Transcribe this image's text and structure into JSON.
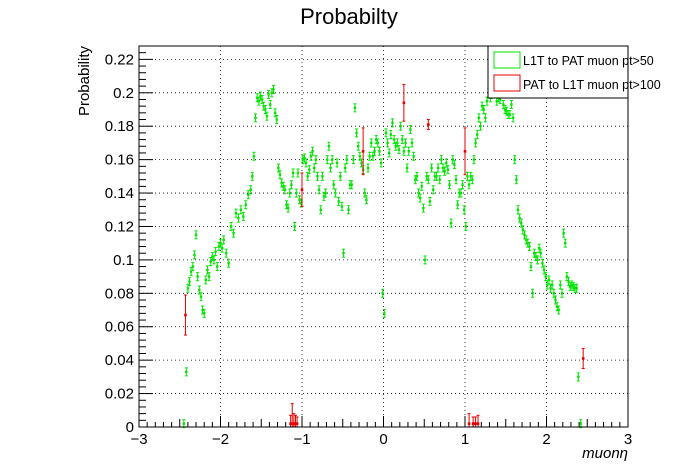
{
  "chart_data": {
    "type": "scatter",
    "title": "Probabilty",
    "xlabel": "muonη",
    "ylabel": "Probability",
    "xlim": [
      -3,
      3
    ],
    "ylim": [
      0,
      0.228
    ],
    "grid": true,
    "legend_position": "top-right",
    "xticks": [
      {
        "value": -3,
        "label": "−3"
      },
      {
        "value": -2,
        "label": "−2"
      },
      {
        "value": -1,
        "label": "−1"
      },
      {
        "value": 0,
        "label": "0"
      },
      {
        "value": 1,
        "label": "1"
      },
      {
        "value": 2,
        "label": "2"
      },
      {
        "value": 3,
        "label": "3"
      }
    ],
    "yticks": [
      {
        "value": 0,
        "label": "0"
      },
      {
        "value": 0.02,
        "label": "0.02"
      },
      {
        "value": 0.04,
        "label": "0.04"
      },
      {
        "value": 0.06,
        "label": "0.06"
      },
      {
        "value": 0.08,
        "label": "0.08"
      },
      {
        "value": 0.1,
        "label": "0.1"
      },
      {
        "value": 0.12,
        "label": "0.12"
      },
      {
        "value": 0.14,
        "label": "0.14"
      },
      {
        "value": 0.16,
        "label": "0.16"
      },
      {
        "value": 0.18,
        "label": "0.18"
      },
      {
        "value": 0.2,
        "label": "0.2"
      },
      {
        "value": 0.22,
        "label": "0.22"
      }
    ],
    "series": [
      {
        "name": "L1T to PAT muon pt>50",
        "color": "#00e600",
        "points": [
          [
            -2.45,
            0.002
          ],
          [
            -2.42,
            0.033
          ],
          [
            -2.4,
            0.083
          ],
          [
            -2.38,
            0.087
          ],
          [
            -2.36,
            0.093
          ],
          [
            -2.34,
            0.096
          ],
          [
            -2.32,
            0.103
          ],
          [
            -2.3,
            0.115
          ],
          [
            -2.28,
            0.09
          ],
          [
            -2.26,
            0.082
          ],
          [
            -2.24,
            0.078
          ],
          [
            -2.22,
            0.07
          ],
          [
            -2.2,
            0.068
          ],
          [
            -2.18,
            0.088
          ],
          [
            -2.16,
            0.094
          ],
          [
            -2.14,
            0.09
          ],
          [
            -2.12,
            0.099
          ],
          [
            -2.1,
            0.102
          ],
          [
            -2.08,
            0.1
          ],
          [
            -2.06,
            0.105
          ],
          [
            -2.04,
            0.096
          ],
          [
            -2.02,
            0.108
          ],
          [
            -2.0,
            0.11
          ],
          [
            -1.98,
            0.107
          ],
          [
            -1.96,
            0.112
          ],
          [
            -1.93,
            0.104
          ],
          [
            -1.9,
            0.098
          ],
          [
            -1.87,
            0.12
          ],
          [
            -1.84,
            0.116
          ],
          [
            -1.81,
            0.128
          ],
          [
            -1.78,
            0.125
          ],
          [
            -1.75,
            0.13
          ],
          [
            -1.72,
            0.126
          ],
          [
            -1.69,
            0.133
          ],
          [
            -1.66,
            0.139
          ],
          [
            -1.63,
            0.142
          ],
          [
            -1.61,
            0.15
          ],
          [
            -1.59,
            0.162
          ],
          [
            -1.57,
            0.185
          ],
          [
            -1.55,
            0.197
          ],
          [
            -1.53,
            0.195
          ],
          [
            -1.51,
            0.198
          ],
          [
            -1.49,
            0.196
          ],
          [
            -1.47,
            0.192
          ],
          [
            -1.45,
            0.19
          ],
          [
            -1.43,
            0.186
          ],
          [
            -1.41,
            0.199
          ],
          [
            -1.39,
            0.193
          ],
          [
            -1.37,
            0.2
          ],
          [
            -1.35,
            0.202
          ],
          [
            -1.33,
            0.188
          ],
          [
            -1.31,
            0.184
          ],
          [
            -1.29,
            0.155
          ],
          [
            -1.27,
            0.151
          ],
          [
            -1.25,
            0.146
          ],
          [
            -1.23,
            0.144
          ],
          [
            -1.21,
            0.142
          ],
          [
            -1.19,
            0.133
          ],
          [
            -1.17,
            0.131
          ],
          [
            -1.15,
            0.14
          ],
          [
            -1.13,
            0.145
          ],
          [
            -1.11,
            0.152
          ],
          [
            -1.09,
            0.12
          ],
          [
            -1.07,
            0.14
          ],
          [
            -1.05,
            0.152
          ],
          [
            -1.03,
            0.136
          ],
          [
            -1.01,
            0.134
          ],
          [
            -0.99,
            0.16
          ],
          [
            -0.97,
            0.161
          ],
          [
            -0.95,
            0.158
          ],
          [
            -0.93,
            0.15
          ],
          [
            -0.91,
            0.154
          ],
          [
            -0.89,
            0.162
          ],
          [
            -0.87,
            0.165
          ],
          [
            -0.85,
            0.155
          ],
          [
            -0.83,
            0.16
          ],
          [
            -0.81,
            0.15
          ],
          [
            -0.79,
            0.142
          ],
          [
            -0.77,
            0.13
          ],
          [
            -0.75,
            0.15
          ],
          [
            -0.73,
            0.138
          ],
          [
            -0.71,
            0.14
          ],
          [
            -0.69,
            0.16
          ],
          [
            -0.67,
            0.168
          ],
          [
            -0.65,
            0.155
          ],
          [
            -0.63,
            0.16
          ],
          [
            -0.61,
            0.145
          ],
          [
            -0.59,
            0.14
          ],
          [
            -0.57,
            0.158
          ],
          [
            -0.55,
            0.135
          ],
          [
            -0.53,
            0.15
          ],
          [
            -0.51,
            0.132
          ],
          [
            -0.49,
            0.104
          ],
          [
            -0.47,
            0.155
          ],
          [
            -0.45,
            0.16
          ],
          [
            -0.43,
            0.13
          ],
          [
            -0.41,
            0.145
          ],
          [
            -0.39,
            0.145
          ],
          [
            -0.37,
            0.16
          ],
          [
            -0.35,
            0.191
          ],
          [
            -0.33,
            0.176
          ],
          [
            -0.31,
            0.168
          ],
          [
            -0.29,
            0.162
          ],
          [
            -0.27,
            0.158
          ],
          [
            -0.25,
            0.154
          ],
          [
            -0.23,
            0.14
          ],
          [
            -0.21,
            0.136
          ],
          [
            -0.19,
            0.155
          ],
          [
            -0.17,
            0.162
          ],
          [
            -0.15,
            0.17
          ],
          [
            -0.13,
            0.162
          ],
          [
            -0.11,
            0.165
          ],
          [
            -0.09,
            0.172
          ],
          [
            -0.07,
            0.17
          ],
          [
            -0.05,
            0.165
          ],
          [
            -0.03,
            0.158
          ],
          [
            -0.01,
            0.08
          ],
          [
            0.01,
            0.068
          ],
          [
            0.03,
            0.176
          ],
          [
            0.05,
            0.17
          ],
          [
            0.07,
            0.164
          ],
          [
            0.09,
            0.175
          ],
          [
            0.11,
            0.182
          ],
          [
            0.13,
            0.172
          ],
          [
            0.15,
            0.168
          ],
          [
            0.17,
            0.17
          ],
          [
            0.19,
            0.166
          ],
          [
            0.21,
            0.18
          ],
          [
            0.23,
            0.172
          ],
          [
            0.25,
            0.165
          ],
          [
            0.27,
            0.17
          ],
          [
            0.29,
            0.155
          ],
          [
            0.31,
            0.165
          ],
          [
            0.33,
            0.178
          ],
          [
            0.35,
            0.17
          ],
          [
            0.37,
            0.162
          ],
          [
            0.39,
            0.148
          ],
          [
            0.41,
            0.15
          ],
          [
            0.43,
            0.14
          ],
          [
            0.45,
            0.137
          ],
          [
            0.47,
            0.144
          ],
          [
            0.49,
            0.131
          ],
          [
            0.51,
            0.1
          ],
          [
            0.53,
            0.15
          ],
          [
            0.55,
            0.148
          ],
          [
            0.57,
            0.135
          ],
          [
            0.59,
            0.155
          ],
          [
            0.61,
            0.142
          ],
          [
            0.63,
            0.15
          ],
          [
            0.65,
            0.15
          ],
          [
            0.67,
            0.155
          ],
          [
            0.69,
            0.148
          ],
          [
            0.71,
            0.16
          ],
          [
            0.73,
            0.155
          ],
          [
            0.75,
            0.153
          ],
          [
            0.77,
            0.158
          ],
          [
            0.79,
            0.154
          ],
          [
            0.81,
            0.145
          ],
          [
            0.83,
            0.122
          ],
          [
            0.85,
            0.16
          ],
          [
            0.87,
            0.157
          ],
          [
            0.89,
            0.148
          ],
          [
            0.91,
            0.133
          ],
          [
            0.93,
            0.14
          ],
          [
            0.95,
            0.14
          ],
          [
            0.97,
            0.145
          ],
          [
            0.99,
            0.13
          ],
          [
            1.01,
            0.12
          ],
          [
            1.03,
            0.15
          ],
          [
            1.05,
            0.145
          ],
          [
            1.07,
            0.15
          ],
          [
            1.09,
            0.148
          ],
          [
            1.11,
            0.16
          ],
          [
            1.13,
            0.17
          ],
          [
            1.15,
            0.175
          ],
          [
            1.17,
            0.185
          ],
          [
            1.19,
            0.18
          ],
          [
            1.21,
            0.192
          ],
          [
            1.23,
            0.19
          ],
          [
            1.25,
            0.185
          ],
          [
            1.27,
            0.195
          ],
          [
            1.29,
            0.2
          ],
          [
            1.31,
            0.197
          ],
          [
            1.33,
            0.199
          ],
          [
            1.35,
            0.201
          ],
          [
            1.37,
            0.203
          ],
          [
            1.39,
            0.195
          ],
          [
            1.41,
            0.197
          ],
          [
            1.43,
            0.196
          ],
          [
            1.45,
            0.2
          ],
          [
            1.47,
            0.193
          ],
          [
            1.49,
            0.19
          ],
          [
            1.51,
            0.189
          ],
          [
            1.53,
            0.187
          ],
          [
            1.55,
            0.187
          ],
          [
            1.57,
            0.193
          ],
          [
            1.59,
            0.185
          ],
          [
            1.61,
            0.16
          ],
          [
            1.63,
            0.148
          ],
          [
            1.65,
            0.13
          ],
          [
            1.67,
            0.125
          ],
          [
            1.69,
            0.122
          ],
          [
            1.71,
            0.118
          ],
          [
            1.73,
            0.115
          ],
          [
            1.75,
            0.112
          ],
          [
            1.77,
            0.11
          ],
          [
            1.79,
            0.108
          ],
          [
            1.81,
            0.096
          ],
          [
            1.83,
            0.08
          ],
          [
            1.85,
            0.104
          ],
          [
            1.87,
            0.102
          ],
          [
            1.89,
            0.1
          ],
          [
            1.91,
            0.107
          ],
          [
            1.93,
            0.104
          ],
          [
            1.95,
            0.098
          ],
          [
            1.97,
            0.094
          ],
          [
            1.99,
            0.09
          ],
          [
            2.01,
            0.085
          ],
          [
            2.03,
            0.088
          ],
          [
            2.05,
            0.083
          ],
          [
            2.07,
            0.085
          ],
          [
            2.09,
            0.08
          ],
          [
            2.11,
            0.076
          ],
          [
            2.13,
            0.072
          ],
          [
            2.15,
            0.07
          ],
          [
            2.17,
            0.085
          ],
          [
            2.19,
            0.08
          ],
          [
            2.21,
            0.116
          ],
          [
            2.23,
            0.11
          ],
          [
            2.25,
            0.09
          ],
          [
            2.27,
            0.087
          ],
          [
            2.29,
            0.084
          ],
          [
            2.31,
            0.085
          ],
          [
            2.33,
            0.084
          ],
          [
            2.35,
            0.083
          ],
          [
            2.37,
            0.083
          ],
          [
            2.39,
            0.03
          ],
          [
            2.42,
            0.002
          ]
        ]
      },
      {
        "name": "PAT to L1T muon pt>100",
        "color": "#e60000",
        "points": [
          [
            -2.43,
            0.067,
            0.012
          ],
          [
            -1.12,
            0.002,
            0.012
          ],
          [
            -1.08,
            0.002,
            0.005
          ],
          [
            -1.14,
            0.002,
            0.005
          ],
          [
            -1.1,
            0.002,
            0.006
          ],
          [
            -1.06,
            0.002,
            0.004
          ],
          [
            -1.0,
            0.142,
            0.01
          ],
          [
            -0.25,
            0.165,
            0.014
          ],
          [
            0.25,
            0.194,
            0.011
          ],
          [
            0.55,
            0.181,
            0.003
          ],
          [
            1.0,
            0.165,
            0.014
          ],
          [
            1.05,
            0.002,
            0.006
          ],
          [
            1.1,
            0.002,
            0.004
          ],
          [
            1.13,
            0.002,
            0.004
          ],
          [
            1.16,
            0.002,
            0.005
          ],
          [
            2.45,
            0.041,
            0.006
          ]
        ]
      }
    ]
  }
}
